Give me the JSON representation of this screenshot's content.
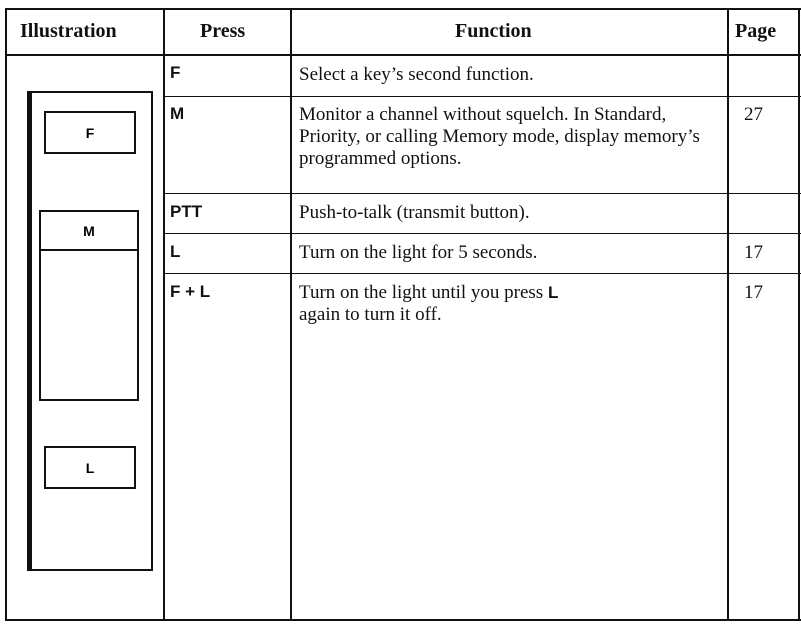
{
  "header": {
    "illustration": "Illustration",
    "press": "Press",
    "function": "Function",
    "page": "Page"
  },
  "illustration": {
    "keys": [
      "F",
      "M",
      "L"
    ]
  },
  "rows": [
    {
      "press": "F",
      "function": "Select a key’s second function."
    },
    {
      "press": "M",
      "function": "Monitor a channel without squelch. In Standard, Priority, or calling Memory mode, display memory’s programmed options.",
      "page": "27"
    },
    {
      "press": "PTT",
      "function": "Push-to-talk (transmit button)."
    },
    {
      "press": "L",
      "function": "Turn on the light for 5 seconds.",
      "page": "17"
    },
    {
      "press": "F + L",
      "function": "Turn on the light until you press",
      "function_key": "L",
      "function_end": "again to turn it off.",
      "page": "17"
    }
  ]
}
